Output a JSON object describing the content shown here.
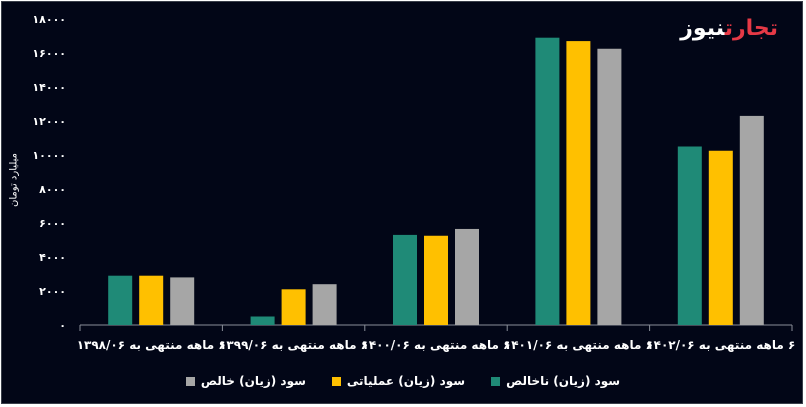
{
  "logo": {
    "part1": "تجارت",
    "part2": "نیوز"
  },
  "chart_data": {
    "type": "bar",
    "ylabel": "میلیارد تومان",
    "ylim": [
      0,
      18000
    ],
    "yticks": [
      "۰",
      "۲۰۰۰",
      "۴۰۰۰",
      "۶۰۰۰",
      "۸۰۰۰",
      "۱۰۰۰۰",
      "۱۲۰۰۰",
      "۱۴۰۰۰",
      "۱۶۰۰۰",
      "۱۸۰۰۰"
    ],
    "ytick_values": [
      0,
      2000,
      4000,
      6000,
      8000,
      10000,
      12000,
      14000,
      16000,
      18000
    ],
    "categories": [
      "۶ ماهه منتهی به ۱۳۹۸/۰۶",
      "۶ ماهه منتهی به ۱۳۹۹/۰۶",
      "۶ ماهه منتهی به ۱۴۰۰/۰۶",
      "۶ ماهه منتهی به ۱۴۰۱/۰۶",
      "۶ ماهه منتهی به ۱۴۰۲/۰۶"
    ],
    "series": [
      {
        "name": "سود (زیان) ناخالص",
        "color": "#1f8a77",
        "values": [
          2900,
          500,
          5300,
          16900,
          10500
        ]
      },
      {
        "name": "سود (زیان) عملیاتی",
        "color": "#ffc000",
        "values": [
          2900,
          2100,
          5250,
          16700,
          10250
        ]
      },
      {
        "name": "سود (زیان) خالص",
        "color": "#a6a6a6",
        "values": [
          2800,
          2400,
          5650,
          16250,
          12300
        ]
      }
    ],
    "grid": false,
    "legend": "bottom"
  }
}
